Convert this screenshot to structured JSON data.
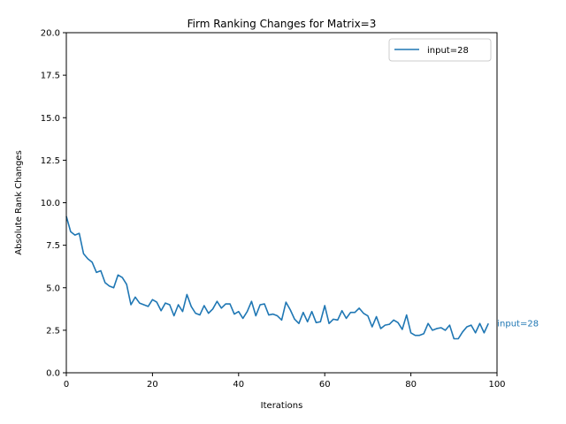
{
  "chart_data": {
    "type": "line",
    "title": "Firm Ranking Changes for Matrix=3",
    "xlabel": "Iterations",
    "ylabel": "Absolute Rank Changes",
    "xlim": [
      0,
      100
    ],
    "ylim": [
      0,
      20
    ],
    "xticks": [
      0,
      20,
      40,
      60,
      80,
      100
    ],
    "yticks": [
      0.0,
      2.5,
      5.0,
      7.5,
      10.0,
      12.5,
      15.0,
      17.5,
      20.0
    ],
    "ytick_labels": [
      "0.0",
      "2.5",
      "5.0",
      "7.5",
      "10.0",
      "12.5",
      "15.0",
      "17.5",
      "20.0"
    ],
    "grid": false,
    "legend_position": "top-right",
    "end_label": "input=28",
    "series": [
      {
        "name": "input=28",
        "color": "#1f77b4",
        "x": [
          0,
          1,
          2,
          3,
          4,
          5,
          6,
          7,
          8,
          9,
          10,
          11,
          12,
          13,
          14,
          15,
          16,
          17,
          18,
          19,
          20,
          21,
          22,
          23,
          24,
          25,
          26,
          27,
          28,
          29,
          30,
          31,
          32,
          33,
          34,
          35,
          36,
          37,
          38,
          39,
          40,
          41,
          42,
          43,
          44,
          45,
          46,
          47,
          48,
          49,
          50,
          51,
          52,
          53,
          54,
          55,
          56,
          57,
          58,
          59,
          60,
          61,
          62,
          63,
          64,
          65,
          66,
          67,
          68,
          69,
          70,
          71,
          72,
          73,
          74,
          75,
          76,
          77,
          78,
          79,
          80,
          81,
          82,
          83,
          84,
          85,
          86,
          87,
          88,
          89,
          90,
          91,
          92,
          93,
          94,
          95,
          96,
          97,
          98
        ],
        "values": [
          9.2,
          8.3,
          8.1,
          8.2,
          7.0,
          6.7,
          6.5,
          5.9,
          6.0,
          5.3,
          5.1,
          5.0,
          5.75,
          5.6,
          5.2,
          4.0,
          4.45,
          4.1,
          4.0,
          3.9,
          4.3,
          4.15,
          3.65,
          4.1,
          4.0,
          3.35,
          4.0,
          3.6,
          4.6,
          3.9,
          3.5,
          3.4,
          3.95,
          3.5,
          3.75,
          4.2,
          3.8,
          4.05,
          4.05,
          3.45,
          3.6,
          3.2,
          3.6,
          4.2,
          3.35,
          4.0,
          4.05,
          3.4,
          3.45,
          3.35,
          3.1,
          4.15,
          3.7,
          3.15,
          2.9,
          3.55,
          3.0,
          3.6,
          2.95,
          3.0,
          3.95,
          2.9,
          3.15,
          3.1,
          3.65,
          3.2,
          3.55,
          3.55,
          3.8,
          3.5,
          3.35,
          2.7,
          3.3,
          2.6,
          2.8,
          2.85,
          3.1,
          2.95,
          2.55,
          3.4,
          2.35,
          2.2,
          2.2,
          2.3,
          2.9,
          2.5,
          2.6,
          2.65,
          2.5,
          2.8,
          2.0,
          2.0,
          2.4,
          2.7,
          2.8,
          2.35,
          2.9,
          2.35,
          2.9
        ]
      }
    ]
  }
}
